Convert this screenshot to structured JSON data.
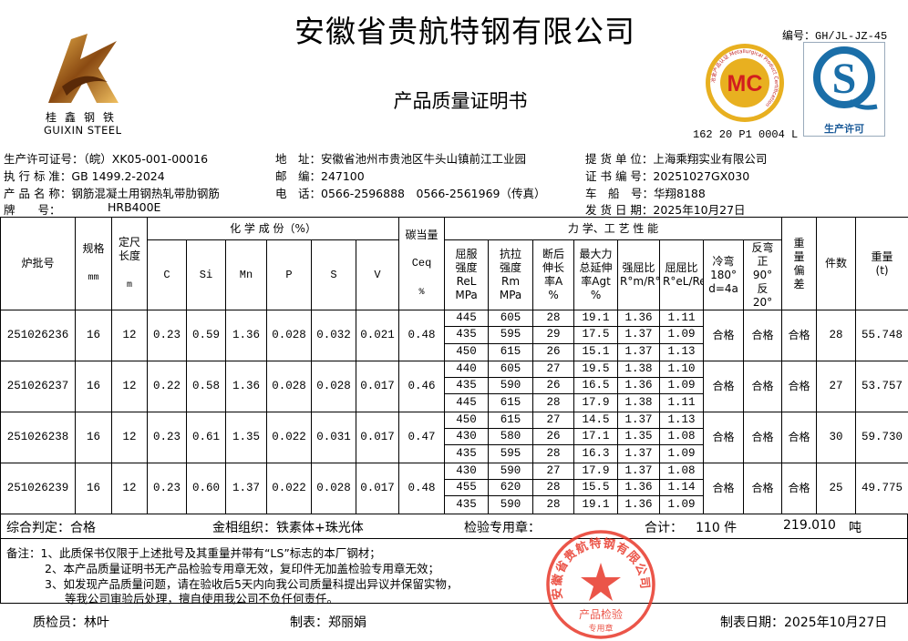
{
  "header": {
    "title": "安徽省贵航特钢有限公司",
    "subtitle": "产品质量证明书",
    "doc_code": "编号：GH/JL-JZ-45",
    "logo_text_cn": "桂鑫钢铁",
    "logo_text_en": "GUIXIN STEEL",
    "mc_cert_no": "162 20 P1 0004 L",
    "mc_logo_text": "MC",
    "mc_ring_text": "冶金产品认证 Metallurgical Product Certification",
    "qs_logo_text": "生产许可"
  },
  "info": {
    "license": "生产许可证号：（皖）XK05-001-00016",
    "standard": "执 行 标 准：GB 1499.2-2024",
    "product": "产 品 名 称：钢筋混凝土用钢热轧带肋钢筋",
    "grade_label": "牌　　号：",
    "grade": "HRB400E",
    "address": "地　址：安徽省池州市贵池区牛头山镇前江工业园",
    "postcode": "邮　编：247100",
    "phone": "电　话：0566-2596888　0566-2561969（传真）",
    "customer": "提 货 单 位：上海乘翔实业有限公司",
    "cert_no": "证 书 编 号：20251027GX030",
    "vehicle": "车　船　号：华翔8188",
    "ship_date": "发 货 日 期：2025年10月27日"
  },
  "table": {
    "headers": {
      "batch": "炉批号",
      "size": "规格",
      "size_unit": "mm",
      "length": "定尺长度",
      "length_unit": "m",
      "chem": "化 学 成 份（%）",
      "C": "C",
      "Si": "Si",
      "Mn": "Mn",
      "P": "P",
      "S": "S",
      "V": "V",
      "ceq": "碳当量",
      "ceq_sym": "Ceq",
      "ceq_unit": "%",
      "mech": "力 学、工 艺 性 能",
      "rel": "屈服强度ReL MPa",
      "rm": "抗拉强度Rm MPa",
      "a": "断后伸长率A %",
      "agt": "最大力总延伸率Agt %",
      "ratio1": "强屈比R°m/R°eL",
      "ratio2": "屈屈比R°eL/ReL",
      "bend": "冷弯180° d=4a",
      "rebend": "反弯正90°反20°",
      "weight_dev": "重量偏差",
      "pieces": "件数",
      "weight": "重量(t)"
    },
    "rows": [
      {
        "batch": "251026236",
        "size": "16",
        "length": "12",
        "C": "0.23",
        "Si": "0.59",
        "Mn": "1.36",
        "P": "0.028",
        "S": "0.032",
        "V": "0.021",
        "ceq": "0.48",
        "mech": [
          [
            "445",
            "605",
            "28",
            "19.1",
            "1.36",
            "1.11"
          ],
          [
            "435",
            "595",
            "29",
            "17.5",
            "1.37",
            "1.09"
          ],
          [
            "450",
            "615",
            "26",
            "15.1",
            "1.37",
            "1.13"
          ]
        ],
        "bend": "合格",
        "rebend": "合格",
        "weight_dev": "合格",
        "pieces": "28",
        "weight": "55.748"
      },
      {
        "batch": "251026237",
        "size": "16",
        "length": "12",
        "C": "0.22",
        "Si": "0.58",
        "Mn": "1.36",
        "P": "0.028",
        "S": "0.028",
        "V": "0.017",
        "ceq": "0.46",
        "mech": [
          [
            "440",
            "605",
            "27",
            "19.5",
            "1.38",
            "1.10"
          ],
          [
            "435",
            "590",
            "26",
            "16.5",
            "1.36",
            "1.09"
          ],
          [
            "445",
            "615",
            "28",
            "17.9",
            "1.38",
            "1.11"
          ]
        ],
        "bend": "合格",
        "rebend": "合格",
        "weight_dev": "合格",
        "pieces": "27",
        "weight": "53.757"
      },
      {
        "batch": "251026238",
        "size": "16",
        "length": "12",
        "C": "0.23",
        "Si": "0.61",
        "Mn": "1.35",
        "P": "0.022",
        "S": "0.031",
        "V": "0.017",
        "ceq": "0.47",
        "mech": [
          [
            "450",
            "615",
            "27",
            "14.5",
            "1.37",
            "1.13"
          ],
          [
            "430",
            "580",
            "26",
            "17.1",
            "1.35",
            "1.08"
          ],
          [
            "435",
            "595",
            "28",
            "16.3",
            "1.37",
            "1.09"
          ]
        ],
        "bend": "合格",
        "rebend": "合格",
        "weight_dev": "合格",
        "pieces": "30",
        "weight": "59.730"
      },
      {
        "batch": "251026239",
        "size": "16",
        "length": "12",
        "C": "0.23",
        "Si": "0.60",
        "Mn": "1.37",
        "P": "0.022",
        "S": "0.028",
        "V": "0.017",
        "ceq": "0.48",
        "mech": [
          [
            "430",
            "590",
            "27",
            "17.9",
            "1.37",
            "1.08"
          ],
          [
            "455",
            "620",
            "28",
            "15.5",
            "1.36",
            "1.14"
          ],
          [
            "435",
            "590",
            "28",
            "19.1",
            "1.36",
            "1.09"
          ]
        ],
        "bend": "合格",
        "rebend": "合格",
        "weight_dev": "合格",
        "pieces": "25",
        "weight": "49.775"
      }
    ]
  },
  "summary": {
    "judgement": "综合判定：合格",
    "structure": "金相组织：铁素体+珠光体",
    "stamp_label": "检验专用章：",
    "total_label": "合计：",
    "total_pieces": "110 件",
    "total_weight": "219.010",
    "weight_unit": "吨"
  },
  "remarks": [
    "备注：1、此质保书仅限于上述批号及其重量并带有“LS”标志的本厂钢材；",
    "2、本产品质量证明书无产品检验专用章无效，复印件无加盖检验专用章无效；",
    "3、如发现产品质量问题，请在验收后5天内向我公司质量科提出异议并保留实物，",
    "等我公司审验后处理，擅自使用我公司不负任何责任。"
  ],
  "seal": {
    "text": "安徽省贵航特钢有限公司",
    "sub": "产品检验",
    "sub2": "专用章",
    "color": "#e8382a"
  },
  "footer": {
    "inspector": "质检员：林叶",
    "maker": "制表：郑丽娟",
    "date": "制表日期：2025年10月27日"
  }
}
